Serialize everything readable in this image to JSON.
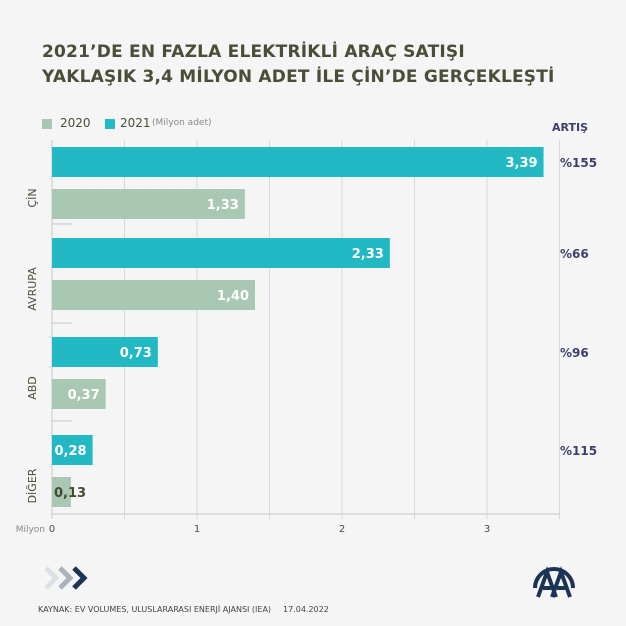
{
  "title_lines": [
    "2021’DE EN FAZLA ELEKTRİKLİ ARAÇ SATIŞI",
    "YAKLAŞIK 3,4 MİLYON ADET İLE ÇİN’DE GERÇEKLEŞTİ"
  ],
  "legend": {
    "s2020": "2020",
    "s2021": "2021",
    "unit_note": "(Milyon adet)"
  },
  "growth_header": "ARTIŞ",
  "footer": {
    "source": "KAYNAK: EV VOLUMES, ULUSLARARASI ENERJİ AJANSI (IEA)",
    "date": "17.04.2022"
  },
  "logo_text": "AA",
  "colors": {
    "s2020": "#a9c8b4",
    "s2021": "#22b9c5",
    "title": "#4a4d37",
    "growth": "#3d3f6e"
  },
  "chart_data": {
    "type": "bar",
    "orientation": "horizontal",
    "categories": [
      "ÇİN",
      "AVRUPA",
      "ABD",
      "DİĞER"
    ],
    "series": [
      {
        "name": "2021",
        "values": [
          3.39,
          2.33,
          0.73,
          0.28
        ],
        "labels": [
          "3,39",
          "2,33",
          "0,73",
          "0,28"
        ]
      },
      {
        "name": "2020",
        "values": [
          1.33,
          1.4,
          0.37,
          0.13
        ],
        "labels": [
          "1,33",
          "1,40",
          "0,37",
          "0,13"
        ]
      }
    ],
    "growth": [
      "%155",
      "%66",
      "%96",
      "%115"
    ],
    "xlabel": "Milyon",
    "xticks": [
      "0",
      "1",
      "2",
      "3"
    ],
    "xlim": [
      0,
      3.5
    ],
    "grid": true,
    "legend_position": "top-left"
  }
}
